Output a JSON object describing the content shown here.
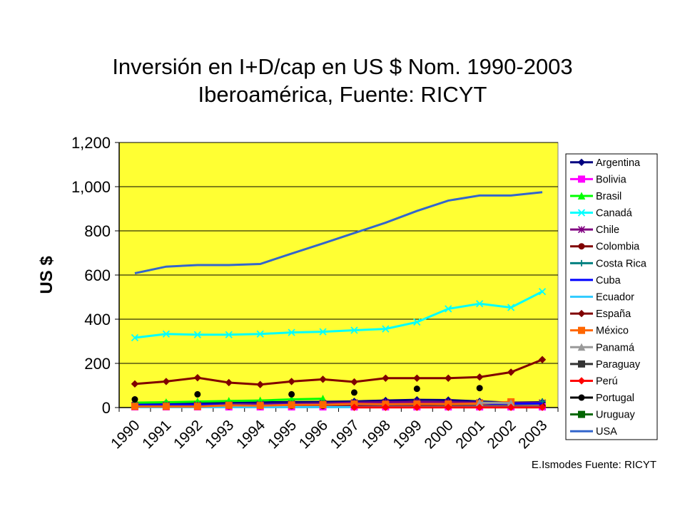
{
  "chart_data": {
    "type": "line",
    "title": "Inversión en I+D/cap en US $ Nom. 1990-2003",
    "subtitle": "Iberoamérica, Fuente: RICYT",
    "xlabel": "",
    "ylabel": "US $",
    "ylim": [
      0,
      1200
    ],
    "yticks": [
      "0",
      "200",
      "400",
      "600",
      "800",
      "1,000",
      "1,200"
    ],
    "categories": [
      "1990",
      "1991",
      "1992",
      "1993",
      "1994",
      "1995",
      "1996",
      "1997",
      "1998",
      "1999",
      "2000",
      "2001",
      "2002",
      "2003"
    ],
    "grid": true,
    "legend_position": "right",
    "plot_background": "#FFFF33",
    "series": [
      {
        "name": "Argentina",
        "color": "#000080",
        "marker": "diamond",
        "values": [
          20,
          21,
          22,
          23,
          24,
          25,
          26,
          28,
          32,
          35,
          34,
          28,
          22,
          24
        ]
      },
      {
        "name": "Bolivia",
        "color": "#FF00FF",
        "marker": "square",
        "values": [
          3,
          3,
          3,
          3,
          3,
          3,
          3,
          3,
          3,
          3,
          3,
          3,
          3,
          3
        ]
      },
      {
        "name": "Brasil",
        "color": "#00FF00",
        "marker": "triangle",
        "values": [
          22,
          24,
          27,
          30,
          32,
          37,
          40,
          null,
          null,
          null,
          null,
          null,
          null,
          null
        ]
      },
      {
        "name": "Canadá",
        "color": "#00FFFF",
        "marker": "x",
        "values": [
          316,
          333,
          330,
          330,
          333,
          340,
          343,
          350,
          356,
          387,
          447,
          470,
          453,
          525
        ]
      },
      {
        "name": "Chile",
        "color": "#800080",
        "marker": "star",
        "values": [
          10,
          11,
          12,
          13,
          15,
          17,
          19,
          22,
          24,
          25,
          24,
          22,
          20,
          21
        ]
      },
      {
        "name": "Colombia",
        "color": "#800000",
        "marker": "circle",
        "values": [
          5,
          5,
          6,
          6,
          6,
          7,
          7,
          8,
          8,
          7,
          6,
          6,
          6,
          6
        ]
      },
      {
        "name": "Costa Rica",
        "color": "#008080",
        "marker": "plus",
        "values": [
          null,
          null,
          null,
          null,
          null,
          null,
          null,
          null,
          null,
          null,
          null,
          null,
          null,
          28
        ]
      },
      {
        "name": "Cuba",
        "color": "#0000FF",
        "marker": "none",
        "values": [
          12,
          13,
          13,
          12,
          12,
          13,
          14,
          15,
          15,
          16,
          16,
          17,
          17,
          18
        ]
      },
      {
        "name": "Ecuador",
        "color": "#33CCFF",
        "marker": "none",
        "values": [
          2,
          2,
          2,
          2,
          2,
          2,
          2,
          2,
          3,
          3,
          3,
          3,
          3,
          3
        ]
      },
      {
        "name": "España",
        "color": "#800000",
        "marker": "diamond",
        "values": [
          107,
          118,
          135,
          113,
          104,
          118,
          128,
          116,
          133,
          133,
          133,
          138,
          160,
          217
        ]
      },
      {
        "name": "México",
        "color": "#FF6600",
        "marker": "square",
        "values": [
          5,
          5,
          5,
          10,
          9,
          12,
          13,
          16,
          15,
          16,
          16,
          18,
          26,
          null
        ]
      },
      {
        "name": "Panamá",
        "color": "#999999",
        "marker": "triangle",
        "values": [
          null,
          null,
          null,
          null,
          null,
          null,
          null,
          null,
          null,
          null,
          null,
          22,
          20,
          null
        ]
      },
      {
        "name": "Paraguay",
        "color": "#333333",
        "marker": "square",
        "values": [
          null,
          null,
          null,
          null,
          null,
          null,
          null,
          null,
          null,
          null,
          null,
          null,
          null,
          null
        ]
      },
      {
        "name": "Perú",
        "color": "#FF0000",
        "marker": "diamond",
        "values": [
          null,
          null,
          null,
          null,
          null,
          null,
          null,
          1,
          1,
          1,
          1,
          1,
          1,
          1
        ]
      },
      {
        "name": "Portugal",
        "color": "#000000",
        "marker": "circle",
        "values": [
          37,
          null,
          60,
          null,
          null,
          60,
          null,
          68,
          null,
          85,
          null,
          88,
          null,
          null
        ]
      },
      {
        "name": "Uruguay",
        "color": "#006600",
        "marker": "square",
        "values": [
          null,
          null,
          null,
          null,
          null,
          null,
          null,
          null,
          null,
          null,
          null,
          null,
          null,
          null
        ]
      },
      {
        "name": "USA",
        "color": "#3366CC",
        "marker": "none",
        "values": [
          608,
          638,
          645,
          645,
          650,
          697,
          743,
          790,
          837,
          890,
          937,
          960,
          960,
          975
        ]
      }
    ]
  },
  "credit": "E.Ismodes Fuente: RICYT"
}
